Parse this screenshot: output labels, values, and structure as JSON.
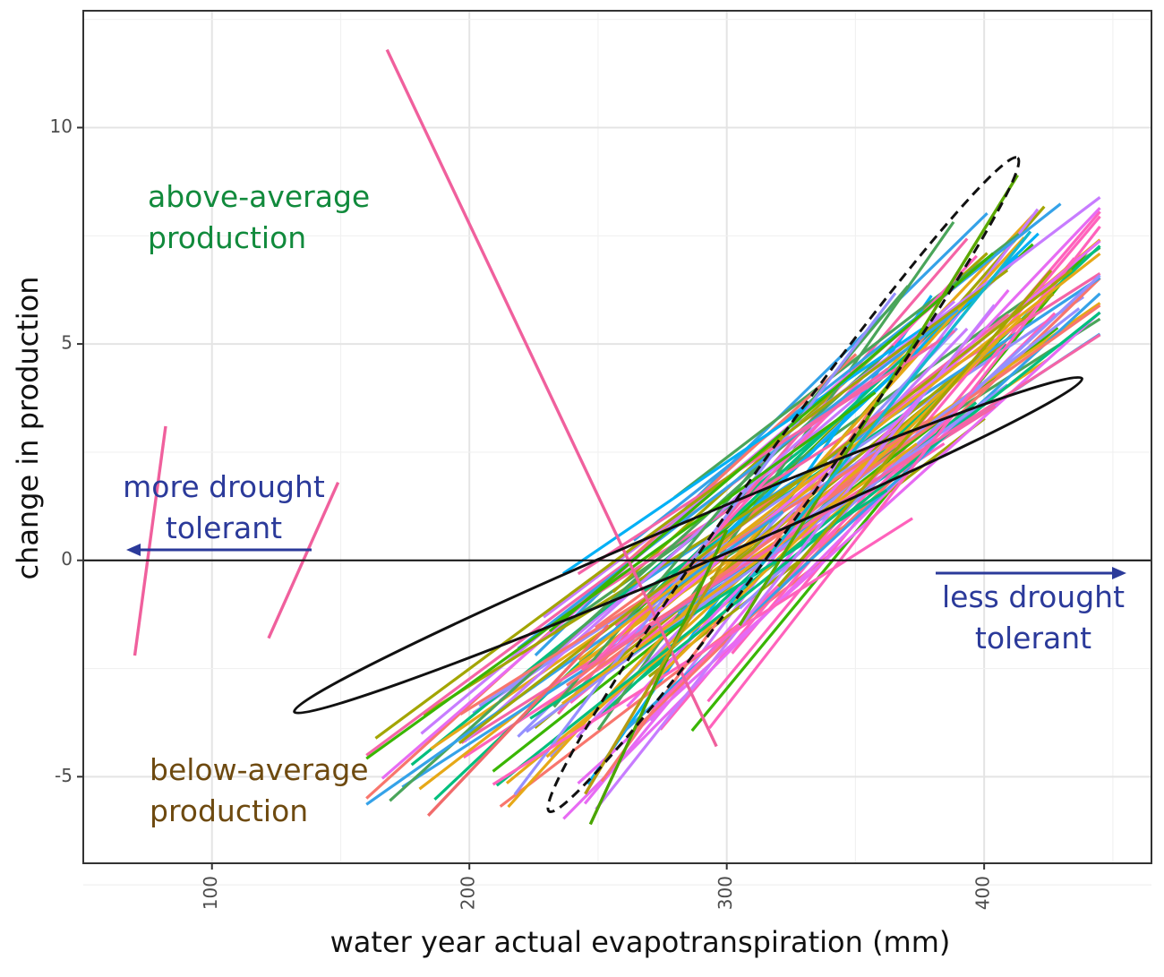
{
  "chart_data": {
    "type": "line",
    "title": "",
    "xlabel": "water year actual evapotranspiration (mm)",
    "ylabel": "change in production",
    "xlim": [
      50,
      465
    ],
    "ylim": [
      -7,
      12.7
    ],
    "xticks": [
      100,
      200,
      300,
      400
    ],
    "xtick_labels": [
      "100",
      "200",
      "300",
      "400"
    ],
    "yticks": [
      -5,
      0,
      5,
      10
    ],
    "ytick_labels": [
      "-5",
      "0",
      "5",
      "10"
    ],
    "grid": true,
    "zero_line": 0,
    "palette": [
      "#f8766d",
      "#e6a817",
      "#a3a500",
      "#39b600",
      "#00bf7d",
      "#00b0f6",
      "#35a2e8",
      "#9590ff",
      "#c77cff",
      "#e76bf3",
      "#ff62bc",
      "#f564a6",
      "#4aa55a"
    ],
    "highlight_series": [
      {
        "name": "steep-pink-outlier",
        "color": "#f0609d",
        "x": [
          168,
          296
        ],
        "y": [
          11.8,
          -4.3
        ]
      },
      {
        "name": "low-aet-pink-a",
        "color": "#f0609d",
        "x": [
          70,
          82
        ],
        "y": [
          -2.2,
          3.1
        ]
      },
      {
        "name": "low-aet-pink-b",
        "color": "#f0609d",
        "x": [
          122,
          149
        ],
        "y": [
          -1.8,
          1.8
        ]
      },
      {
        "name": "low-red",
        "color": "#f16b6b",
        "x": [
          184,
          254
        ],
        "y": [
          -5.9,
          -1.5
        ]
      },
      {
        "name": "steep-green-top",
        "color": "#5aa900",
        "x": [
          305,
          413
        ],
        "y": [
          -1.5,
          8.9
        ]
      },
      {
        "name": "low-green",
        "color": "#4aa500",
        "x": [
          247,
          300
        ],
        "y": [
          -6.1,
          0.7
        ]
      },
      {
        "name": "low-olive",
        "color": "#b59b12",
        "x": [
          245,
          300
        ],
        "y": [
          -5.4,
          0.1
        ]
      },
      {
        "name": "cyan-steep",
        "color": "#13b8d0",
        "x": [
          300,
          418
        ],
        "y": [
          -1.1,
          7.6
        ]
      },
      {
        "name": "olive-steep",
        "color": "#a3a500",
        "x": [
          320,
          426
        ],
        "y": [
          -0.6,
          6.7
        ]
      }
    ],
    "annotations": {
      "above": "above-average\nproduction",
      "below": "below-average\nproduction",
      "more": "more drought\ntolerant",
      "less": "less drought\ntolerant"
    },
    "annotation_colors": {
      "above": "#118a3c",
      "below": "#6e4a10",
      "more": "#2b3a9a",
      "less": "#2b3a9a"
    },
    "ellipses": [
      {
        "name": "solid-ellipse",
        "style": "solid",
        "center_x": 285,
        "center_y": 0.35,
        "through_x": 438,
        "through_y": 4.2
      },
      {
        "name": "dashed-ellipse",
        "style": "dashed",
        "center_x": 322,
        "center_y": 1.75,
        "through_x": 413,
        "through_y": 9.3
      }
    ]
  }
}
